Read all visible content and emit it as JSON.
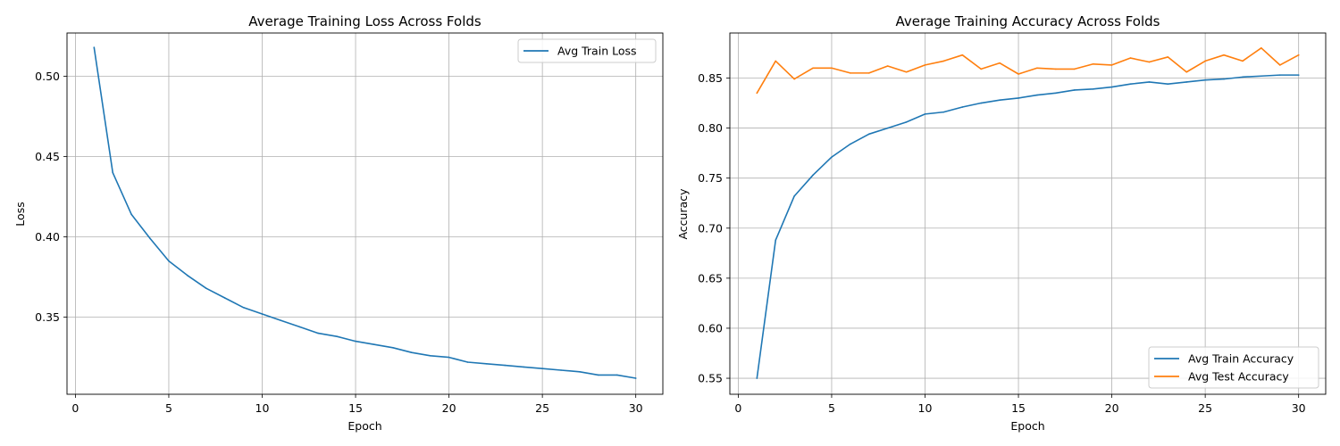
{
  "chart_data": [
    {
      "type": "line",
      "title": "Average Training Loss Across Folds",
      "xlabel": "Epoch",
      "ylabel": "Loss",
      "xlim": [
        -0.45,
        31.45
      ],
      "ylim": [
        0.302,
        0.527
      ],
      "grid": true,
      "legend_position": "top-right",
      "xticks": [
        0,
        5,
        10,
        15,
        20,
        25,
        30
      ],
      "xtick_labels": [
        "0",
        "5",
        "10",
        "15",
        "20",
        "25",
        "30"
      ],
      "yticks": [
        0.35,
        0.4,
        0.45,
        0.5
      ],
      "ytick_labels": [
        "0.35",
        "0.40",
        "0.45",
        "0.50"
      ],
      "x": [
        1,
        2,
        3,
        4,
        5,
        6,
        7,
        8,
        9,
        10,
        11,
        12,
        13,
        14,
        15,
        16,
        17,
        18,
        19,
        20,
        21,
        22,
        23,
        24,
        25,
        26,
        27,
        28,
        29,
        30
      ],
      "series": [
        {
          "name": "Avg Train Loss",
          "color": "#1f77b4",
          "values": [
            0.518,
            0.44,
            0.414,
            0.399,
            0.385,
            0.376,
            0.368,
            0.362,
            0.356,
            0.352,
            0.348,
            0.344,
            0.34,
            0.338,
            0.335,
            0.333,
            0.331,
            0.328,
            0.326,
            0.325,
            0.322,
            0.321,
            0.32,
            0.319,
            0.318,
            0.317,
            0.316,
            0.314,
            0.314,
            0.312
          ]
        }
      ]
    },
    {
      "type": "line",
      "title": "Average Training Accuracy Across Folds",
      "xlabel": "Epoch",
      "ylabel": "Accuracy",
      "xlim": [
        -0.45,
        31.45
      ],
      "ylim": [
        0.534,
        0.895
      ],
      "grid": true,
      "legend_position": "bottom-right",
      "xticks": [
        0,
        5,
        10,
        15,
        20,
        25,
        30
      ],
      "xtick_labels": [
        "0",
        "5",
        "10",
        "15",
        "20",
        "25",
        "30"
      ],
      "yticks": [
        0.55,
        0.6,
        0.65,
        0.7,
        0.75,
        0.8,
        0.85
      ],
      "ytick_labels": [
        "0.55",
        "0.60",
        "0.65",
        "0.70",
        "0.75",
        "0.80",
        "0.85"
      ],
      "x": [
        1,
        2,
        3,
        4,
        5,
        6,
        7,
        8,
        9,
        10,
        11,
        12,
        13,
        14,
        15,
        16,
        17,
        18,
        19,
        20,
        21,
        22,
        23,
        24,
        25,
        26,
        27,
        28,
        29,
        30
      ],
      "series": [
        {
          "name": "Avg Train Accuracy",
          "color": "#1f77b4",
          "values": [
            0.55,
            0.688,
            0.732,
            0.753,
            0.771,
            0.784,
            0.794,
            0.8,
            0.806,
            0.814,
            0.816,
            0.821,
            0.825,
            0.828,
            0.83,
            0.833,
            0.835,
            0.838,
            0.839,
            0.841,
            0.844,
            0.846,
            0.844,
            0.846,
            0.848,
            0.849,
            0.851,
            0.852,
            0.853,
            0.853
          ]
        },
        {
          "name": "Avg Test Accuracy",
          "color": "#ff7f0e",
          "values": [
            0.835,
            0.867,
            0.849,
            0.86,
            0.86,
            0.855,
            0.855,
            0.862,
            0.856,
            0.863,
            0.867,
            0.873,
            0.859,
            0.865,
            0.854,
            0.86,
            0.859,
            0.859,
            0.864,
            0.863,
            0.87,
            0.866,
            0.871,
            0.856,
            0.867,
            0.873,
            0.867,
            0.88,
            0.863,
            0.873
          ]
        }
      ]
    }
  ]
}
